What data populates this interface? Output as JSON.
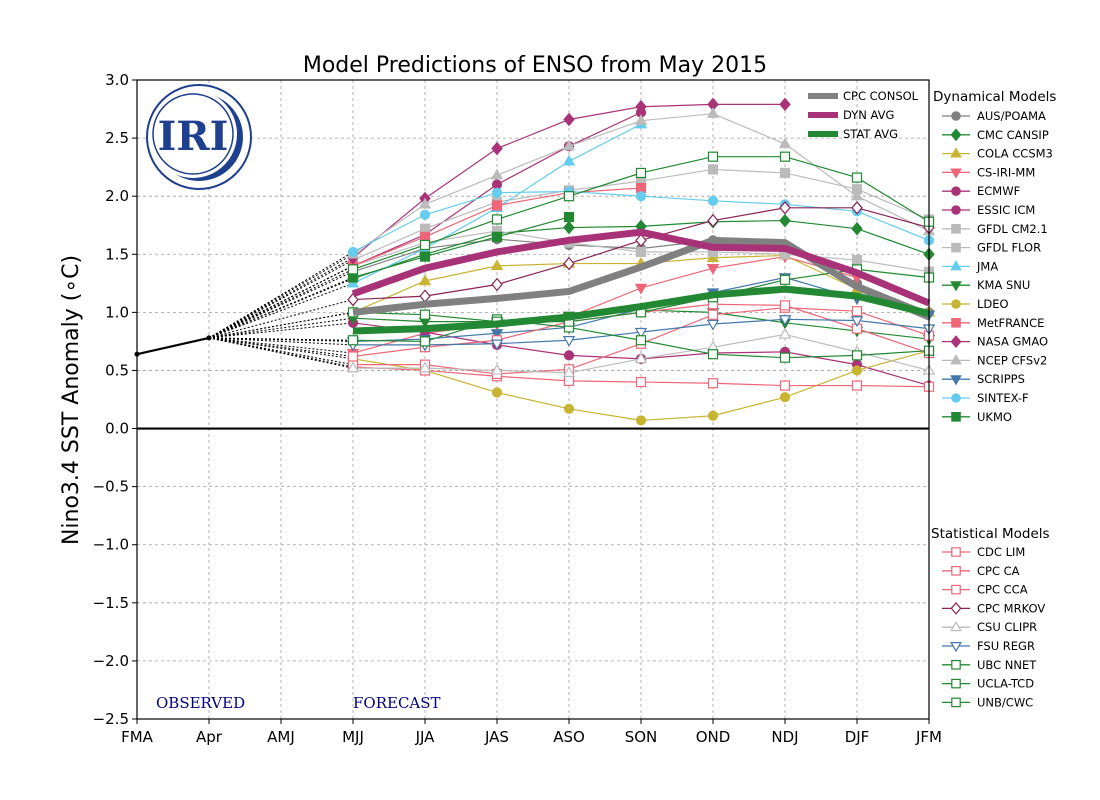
{
  "chart_data": {
    "type": "line",
    "title": "Model Predictions of ENSO from May 2015",
    "ylabel": "Nino3.4 SST Anomaly (∘C)",
    "xlabel": "",
    "categories": [
      "FMA",
      "Apr",
      "AMJ",
      "MJJ",
      "JJA",
      "JAS",
      "ASO",
      "SON",
      "OND",
      "NDJ",
      "DJF",
      "JFM"
    ],
    "ylim": [
      -2.5,
      3.0
    ],
    "yticks": [
      "−2.5",
      "−2.0",
      "−1.5",
      "−1.0",
      "−0.5",
      "0.0",
      "0.5",
      "1.0",
      "1.5",
      "2.0",
      "2.5",
      "3.0"
    ],
    "ytick_values": [
      -2.5,
      -2.0,
      -1.5,
      -1.0,
      -0.5,
      0.0,
      0.5,
      1.0,
      1.5,
      2.0,
      2.5,
      3.0
    ],
    "grid": true,
    "observed_label": "OBSERVED",
    "forecast_label": "FORECAST",
    "logo_text": "IRI",
    "observed": {
      "values": [
        0.64,
        0.78
      ]
    },
    "averages": [
      {
        "name": "CPC CONSOL",
        "color": "#808080",
        "values": [
          null,
          null,
          null,
          1.0,
          1.07,
          1.12,
          1.18,
          1.39,
          1.62,
          1.6,
          1.22,
          0.96
        ]
      },
      {
        "name": "DYN AVG",
        "color": "#a83278",
        "values": [
          null,
          null,
          null,
          1.16,
          1.38,
          1.52,
          1.62,
          1.69,
          1.56,
          1.55,
          1.34,
          1.08
        ]
      },
      {
        "name": "STAT AVG",
        "color": "#228833",
        "values": [
          null,
          null,
          null,
          0.84,
          0.86,
          0.9,
          0.96,
          1.05,
          1.15,
          1.2,
          1.14,
          0.99
        ]
      }
    ],
    "dynamical_title": "Dynamical Models",
    "statistical_title": "Statistical Models",
    "dynamical": [
      {
        "name": "AUS/POAMA",
        "color": "#808080",
        "marker": "circle",
        "fill": true,
        "values": [
          null,
          null,
          null,
          1.35,
          1.55,
          1.63,
          1.58,
          1.55,
          1.62,
          1.55,
          1.25,
          1.0
        ]
      },
      {
        "name": "CMC CANSIP",
        "color": "#228833",
        "marker": "diamond",
        "fill": true,
        "values": [
          null,
          null,
          null,
          1.29,
          1.5,
          1.68,
          1.73,
          1.74,
          1.78,
          1.79,
          1.72,
          1.5
        ]
      },
      {
        "name": "COLA CCSM3",
        "color": "#c8b432",
        "marker": "triangle-up",
        "fill": true,
        "values": [
          null,
          null,
          null,
          1.0,
          1.27,
          1.4,
          1.42,
          1.42,
          1.47,
          1.49,
          1.2,
          1.0
        ]
      },
      {
        "name": "CS-IRI-MM",
        "color": "#ee6677",
        "marker": "triangle-down",
        "fill": true,
        "values": [
          null,
          null,
          null,
          0.65,
          0.82,
          0.9,
          0.96,
          1.21,
          1.38,
          1.48,
          1.3,
          null
        ]
      },
      {
        "name": "ECMWF",
        "color": "#aa3377",
        "marker": "circle",
        "fill": true,
        "values": [
          null,
          null,
          null,
          0.91,
          0.83,
          0.72,
          0.63,
          0.6,
          0.65,
          0.66,
          0.55,
          0.37
        ]
      },
      {
        "name": "ESSIC ICM",
        "color": "#aa3377",
        "marker": "circle",
        "fill": true,
        "values": [
          null,
          null,
          null,
          1.4,
          1.67,
          2.1,
          2.43,
          2.72,
          null,
          null,
          null,
          null
        ]
      },
      {
        "name": "GFDL CM2.1",
        "color": "#bbbbbb",
        "marker": "square",
        "fill": true,
        "values": [
          null,
          null,
          null,
          1.45,
          1.72,
          1.95,
          2.05,
          2.13,
          2.23,
          2.2,
          2.06,
          1.8
        ]
      },
      {
        "name": "GFDL FLOR",
        "color": "#bbbbbb",
        "marker": "square",
        "fill": true,
        "values": [
          null,
          null,
          null,
          1.4,
          1.6,
          1.7,
          1.6,
          1.52,
          1.52,
          1.5,
          1.45,
          1.35
        ]
      },
      {
        "name": "JMA",
        "color": "#66ccee",
        "marker": "triangle-up",
        "fill": true,
        "values": [
          null,
          null,
          null,
          1.25,
          1.55,
          1.9,
          2.3,
          2.62,
          null,
          null,
          null,
          null
        ]
      },
      {
        "name": "KMA SNU",
        "color": "#228833",
        "marker": "triangle-down",
        "fill": true,
        "values": [
          null,
          null,
          null,
          0.95,
          0.92,
          0.92,
          0.97,
          1.02,
          1.0,
          0.91,
          0.84,
          0.77
        ]
      },
      {
        "name": "LDEO",
        "color": "#c8b432",
        "marker": "circle",
        "fill": true,
        "values": [
          null,
          null,
          null,
          0.6,
          0.5,
          0.31,
          0.17,
          0.07,
          0.11,
          0.27,
          0.5,
          0.67
        ]
      },
      {
        "name": "MetFRANCE",
        "color": "#ee6677",
        "marker": "square",
        "fill": true,
        "values": [
          null,
          null,
          null,
          1.4,
          1.65,
          1.92,
          2.03,
          2.07,
          null,
          null,
          null,
          null
        ]
      },
      {
        "name": "NASA GMAO",
        "color": "#aa3377",
        "marker": "diamond",
        "fill": true,
        "values": [
          null,
          null,
          null,
          1.47,
          1.98,
          2.41,
          2.66,
          2.77,
          2.79,
          2.79,
          null,
          null
        ]
      },
      {
        "name": "NCEP CFSv2",
        "color": "#bbbbbb",
        "marker": "triangle-up",
        "fill": true,
        "values": [
          null,
          null,
          null,
          1.5,
          1.93,
          2.18,
          2.43,
          2.65,
          2.71,
          2.45,
          2.0,
          1.7
        ]
      },
      {
        "name": "SCRIPPS",
        "color": "#4477aa",
        "marker": "triangle-down",
        "fill": true,
        "values": [
          null,
          null,
          null,
          0.75,
          0.77,
          0.82,
          0.87,
          1.03,
          1.17,
          1.3,
          1.12,
          0.98
        ]
      },
      {
        "name": "SINTEX-F",
        "color": "#66ccee",
        "marker": "circle",
        "fill": true,
        "values": [
          null,
          null,
          null,
          1.52,
          1.84,
          2.03,
          2.04,
          2.0,
          1.96,
          1.93,
          1.87,
          1.62
        ]
      },
      {
        "name": "UKMO",
        "color": "#228833",
        "marker": "square",
        "fill": true,
        "values": [
          null,
          null,
          null,
          1.3,
          1.48,
          1.65,
          1.82,
          null,
          null,
          null,
          null,
          null
        ]
      }
    ],
    "statistical": [
      {
        "name": "CDC LIM",
        "color": "#ee6677",
        "marker": "square",
        "fill": false,
        "values": [
          null,
          null,
          null,
          0.53,
          0.5,
          0.45,
          0.41,
          0.4,
          0.39,
          0.37,
          0.37,
          0.36
        ]
      },
      {
        "name": "CPC CA",
        "color": "#ee6677",
        "marker": "square",
        "fill": false,
        "values": [
          null,
          null,
          null,
          0.55,
          0.55,
          0.47,
          0.51,
          0.73,
          0.98,
          1.04,
          1.01,
          0.8
        ]
      },
      {
        "name": "CPC CCA",
        "color": "#ee6677",
        "marker": "square",
        "fill": false,
        "values": [
          null,
          null,
          null,
          0.62,
          0.7,
          0.76,
          0.92,
          1.0,
          1.07,
          1.06,
          0.86,
          0.65
        ]
      },
      {
        "name": "CPC MRKOV",
        "color": "#882255",
        "marker": "diamond",
        "fill": false,
        "values": [
          null,
          null,
          null,
          1.11,
          1.14,
          1.24,
          1.42,
          1.62,
          1.79,
          1.9,
          1.9,
          1.73
        ]
      },
      {
        "name": "CSU CLIPR",
        "color": "#bbbbbb",
        "marker": "triangle-up",
        "fill": false,
        "values": [
          null,
          null,
          null,
          0.52,
          0.52,
          0.5,
          0.48,
          0.6,
          0.7,
          0.81,
          0.66,
          0.5
        ]
      },
      {
        "name": "FSU REGR",
        "color": "#4477aa",
        "marker": "triangle-down",
        "fill": false,
        "values": [
          null,
          null,
          null,
          0.72,
          0.72,
          0.73,
          0.76,
          0.83,
          0.9,
          0.94,
          0.93,
          0.86
        ]
      },
      {
        "name": "UBC NNET",
        "color": "#228833",
        "marker": "square",
        "fill": false,
        "values": [
          null,
          null,
          null,
          0.76,
          0.75,
          0.94,
          0.87,
          0.76,
          0.64,
          0.61,
          0.63,
          0.67
        ]
      },
      {
        "name": "UCLA-TCD",
        "color": "#228833",
        "marker": "square",
        "fill": false,
        "values": [
          null,
          null,
          null,
          1.37,
          1.58,
          1.8,
          2.0,
          2.2,
          2.34,
          2.34,
          2.16,
          1.78
        ]
      },
      {
        "name": "UNB/CWC",
        "color": "#228833",
        "marker": "square",
        "fill": false,
        "values": [
          null,
          null,
          null,
          1.0,
          0.98,
          0.92,
          0.92,
          1.0,
          1.13,
          1.28,
          1.37,
          1.3
        ]
      }
    ]
  }
}
